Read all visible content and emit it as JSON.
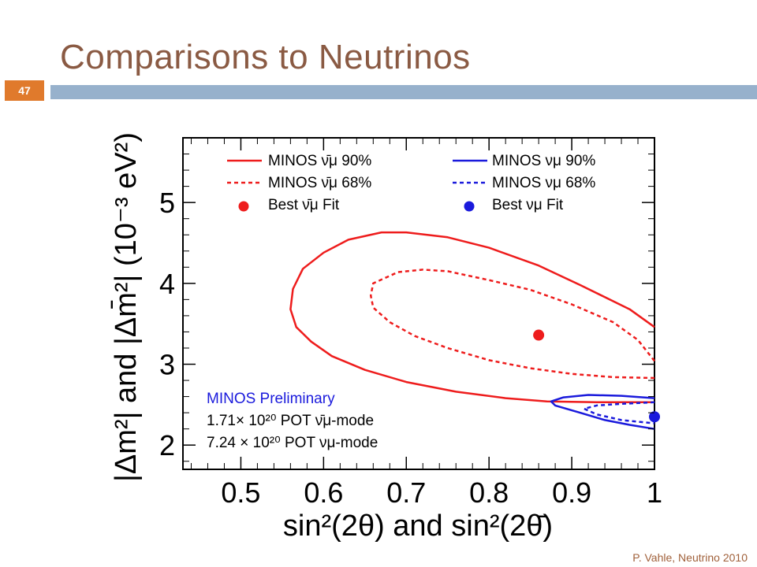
{
  "slide": {
    "title": "Comparisons to Neutrinos",
    "number": "47",
    "footer": "P. Vahle, Neutrino 2010"
  },
  "colors": {
    "antineutrino": "#ee1c1c",
    "neutrino": "#1a1adc",
    "title": "#8a5a43",
    "accent_bar": "#97b1cc",
    "badge": "#e07a2c"
  },
  "chart_data": {
    "type": "line",
    "ylabel": "|Δm²| and |Δm̄²| (10⁻³ eV²)",
    "xlabel": "sin²(2θ) and sin²(2θ̄)",
    "xlim": [
      0.43,
      1.0
    ],
    "ylim": [
      1.7,
      5.8
    ],
    "xticks": [
      "0.5",
      "0.6",
      "0.7",
      "0.8",
      "0.9",
      "1"
    ],
    "yticks": [
      "2",
      "3",
      "4",
      "5"
    ],
    "legend": {
      "placement": "top",
      "entries": [
        "MINOS ν̄μ 90%",
        "MINOS ν̄μ 68%",
        "Best ν̄μ Fit",
        "MINOS νμ 90%",
        "MINOS νμ 68%",
        "Best νμ Fit"
      ]
    },
    "annotation": {
      "title": "MINOS Preliminary",
      "line1": "1.71× 10²⁰ POT ν̄μ-mode",
      "line2": "7.24 × 10²⁰ POT νμ-mode"
    },
    "series": [
      {
        "name": "MINOS ν̄μ 90%",
        "style": "solid",
        "color": "#ee1c1c",
        "points": [
          [
            1.0,
            3.46
          ],
          [
            0.97,
            3.68
          ],
          [
            0.91,
            3.98
          ],
          [
            0.86,
            4.22
          ],
          [
            0.8,
            4.44
          ],
          [
            0.75,
            4.57
          ],
          [
            0.7,
            4.63
          ],
          [
            0.67,
            4.63
          ],
          [
            0.63,
            4.54
          ],
          [
            0.6,
            4.38
          ],
          [
            0.575,
            4.18
          ],
          [
            0.563,
            3.93
          ],
          [
            0.56,
            3.68
          ],
          [
            0.567,
            3.46
          ],
          [
            0.585,
            3.28
          ],
          [
            0.61,
            3.1
          ],
          [
            0.65,
            2.93
          ],
          [
            0.7,
            2.78
          ],
          [
            0.76,
            2.66
          ],
          [
            0.82,
            2.58
          ],
          [
            0.87,
            2.54
          ],
          [
            0.93,
            2.53
          ],
          [
            1.0,
            2.53
          ]
        ]
      },
      {
        "name": "MINOS ν̄μ 68%",
        "style": "dashed",
        "color": "#ee1c1c",
        "points": [
          [
            1.0,
            3.04
          ],
          [
            0.98,
            3.3
          ],
          [
            0.95,
            3.52
          ],
          [
            0.9,
            3.74
          ],
          [
            0.85,
            3.92
          ],
          [
            0.8,
            4.04
          ],
          [
            0.75,
            4.15
          ],
          [
            0.72,
            4.17
          ],
          [
            0.69,
            4.14
          ],
          [
            0.66,
            4.0
          ],
          [
            0.657,
            3.85
          ],
          [
            0.66,
            3.7
          ],
          [
            0.68,
            3.52
          ],
          [
            0.71,
            3.35
          ],
          [
            0.75,
            3.2
          ],
          [
            0.8,
            3.05
          ],
          [
            0.85,
            2.95
          ],
          [
            0.9,
            2.88
          ],
          [
            0.95,
            2.84
          ],
          [
            1.0,
            2.83
          ]
        ]
      },
      {
        "name": "MINOS νμ 90%",
        "style": "solid",
        "color": "#1a1adc",
        "points": [
          [
            1.0,
            2.58
          ],
          [
            0.96,
            2.61
          ],
          [
            0.92,
            2.62
          ],
          [
            0.89,
            2.59
          ],
          [
            0.875,
            2.54
          ],
          [
            0.88,
            2.49
          ],
          [
            0.91,
            2.4
          ],
          [
            0.94,
            2.31
          ],
          [
            0.97,
            2.25
          ],
          [
            1.0,
            2.2
          ]
        ]
      },
      {
        "name": "MINOS νμ 68%",
        "style": "dashed",
        "color": "#1a1adc",
        "points": [
          [
            1.0,
            2.53
          ],
          [
            0.96,
            2.51
          ],
          [
            0.93,
            2.49
          ],
          [
            0.915,
            2.45
          ],
          [
            0.93,
            2.38
          ],
          [
            0.96,
            2.31
          ],
          [
            1.0,
            2.27
          ]
        ]
      }
    ],
    "best_fits": [
      {
        "name": "Best ν̄μ Fit",
        "x": 0.86,
        "y": 3.36,
        "color": "#ee1c1c"
      },
      {
        "name": "Best νμ Fit",
        "x": 1.0,
        "y": 2.35,
        "color": "#1a1adc"
      }
    ]
  }
}
